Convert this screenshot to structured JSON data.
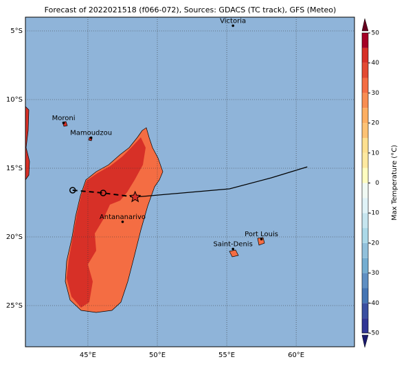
{
  "chart_data": {
    "type": "map",
    "title": "Forecast of 2022021518 (f066-072), Sources: GDACS (TC track), GFS (Meteo)",
    "xlim": [
      40.5,
      64.2
    ],
    "ylim": [
      -28,
      -4
    ],
    "xticks": [
      {
        "value": 45,
        "label": "45°E"
      },
      {
        "value": 50,
        "label": "50°E"
      },
      {
        "value": 55,
        "label": "55°E"
      },
      {
        "value": 60,
        "label": "60°E"
      }
    ],
    "yticks": [
      {
        "value": -5,
        "label": "5°S"
      },
      {
        "value": -10,
        "label": "10°S"
      },
      {
        "value": -15,
        "label": "15°S"
      },
      {
        "value": -20,
        "label": "20°S"
      },
      {
        "value": -25,
        "label": "25°S"
      }
    ],
    "grid": true,
    "cities": [
      {
        "name": "Victoria",
        "lon": 55.45,
        "lat": -4.62
      },
      {
        "name": "Moroni",
        "lon": 43.25,
        "lat": -11.7
      },
      {
        "name": "Mamoudzou",
        "lon": 45.23,
        "lat": -12.78
      },
      {
        "name": "Antananarivo",
        "lon": 47.5,
        "lat": -18.9
      },
      {
        "name": "Port Louis",
        "lon": 57.5,
        "lat": -20.16
      },
      {
        "name": "Saint-Denis",
        "lon": 55.45,
        "lat": -20.88
      }
    ],
    "past_track": {
      "lon": [
        43.9,
        46.1,
        48.4
      ],
      "lat": [
        -16.6,
        -16.8,
        -17.1
      ]
    },
    "forecast_track": {
      "lon": [
        48.4,
        55.2,
        58.2,
        60.8
      ],
      "lat": [
        -17.1,
        -16.5,
        -15.7,
        -14.9
      ]
    },
    "colorbar": {
      "label": "Max Temperature (°C)",
      "levels": [
        -50,
        -45,
        -40,
        -35,
        -30,
        -25,
        -20,
        -15,
        -10,
        -5,
        0,
        5,
        10,
        15,
        20,
        25,
        30,
        35,
        40,
        45,
        50
      ],
      "colors": [
        "#313695",
        "#3a4fa1",
        "#4575b4",
        "#5f8fc3",
        "#74add1",
        "#91c0db",
        "#abd9e9",
        "#c6e5ef",
        "#e0f3f8",
        "#f0f9f3",
        "#fffdc0",
        "#fee9a0",
        "#fee090",
        "#fdc274",
        "#fdae61",
        "#f88d52",
        "#f46d43",
        "#e34a33",
        "#d73027",
        "#a50026"
      ],
      "ticks": [
        -50,
        -40,
        -30,
        -20,
        -10,
        0,
        10,
        20,
        30,
        40,
        50
      ]
    }
  }
}
